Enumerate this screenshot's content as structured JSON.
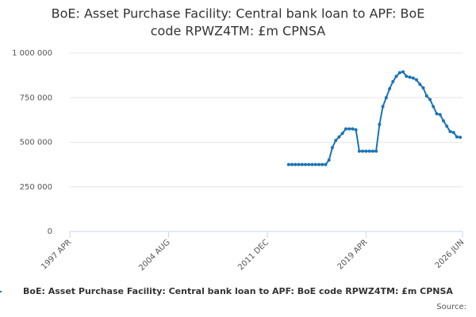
{
  "chart_data": {
    "type": "line",
    "title": [
      "BoE: Asset Purchase Facility: Central bank loan to APF: BoE",
      "code RPWZ4TM: £m CPNSA"
    ],
    "x": [
      "2013-07",
      "2013-10",
      "2014-01",
      "2014-04",
      "2014-07",
      "2014-10",
      "2015-01",
      "2015-04",
      "2015-07",
      "2015-10",
      "2016-01",
      "2016-04",
      "2016-07",
      "2016-10",
      "2017-01",
      "2017-04",
      "2017-07",
      "2017-10",
      "2018-01",
      "2018-04",
      "2018-07",
      "2018-10",
      "2019-01",
      "2019-04",
      "2019-07",
      "2019-10",
      "2020-01",
      "2020-04",
      "2020-07",
      "2020-10",
      "2021-01",
      "2021-04",
      "2021-07",
      "2021-10",
      "2022-01",
      "2022-04",
      "2022-07",
      "2022-10",
      "2023-01",
      "2023-04",
      "2023-07",
      "2023-10",
      "2024-01",
      "2024-04",
      "2024-07",
      "2024-10",
      "2025-01",
      "2025-04",
      "2025-07",
      "2025-10",
      "2026-01",
      "2026-04"
    ],
    "series": [
      {
        "name": "BoE: Asset Purchase Facility: Central bank loan to APF: BoE code RPWZ4TM: £m CPNSA",
        "color": "#1a73b5",
        "values": [
          375000,
          375000,
          375000,
          375000,
          375000,
          375000,
          375000,
          375000,
          375000,
          375000,
          375000,
          375000,
          400000,
          470000,
          510000,
          530000,
          550000,
          575000,
          575000,
          575000,
          570000,
          450000,
          450000,
          450000,
          450000,
          450000,
          450000,
          600000,
          700000,
          750000,
          800000,
          840000,
          870000,
          890000,
          895000,
          870000,
          865000,
          860000,
          850000,
          825000,
          805000,
          760000,
          740000,
          700000,
          660000,
          655000,
          620000,
          590000,
          560000,
          555000,
          530000,
          528000
        ]
      }
    ],
    "xlim": [
      "1997-04",
      "2026-06"
    ],
    "xticks": [
      {
        "value": "1997-04",
        "label": "1997 APR"
      },
      {
        "value": "2004-08",
        "label": "2004 AUG"
      },
      {
        "value": "2011-12",
        "label": "2011 DEC"
      },
      {
        "value": "2019-04",
        "label": "2019 APR"
      },
      {
        "value": "2026-06",
        "label": "2026 JUN"
      }
    ],
    "ylim": [
      0,
      1000000
    ],
    "yticks": [
      0,
      {
        "value": 250000,
        "label": "250 000"
      },
      {
        "value": 500000,
        "label": "500 000"
      },
      {
        "value": 750000,
        "label": "750 000"
      },
      {
        "value": 1000000,
        "label": "1 000 000"
      }
    ],
    "grid": true,
    "source_label": "Source:"
  }
}
